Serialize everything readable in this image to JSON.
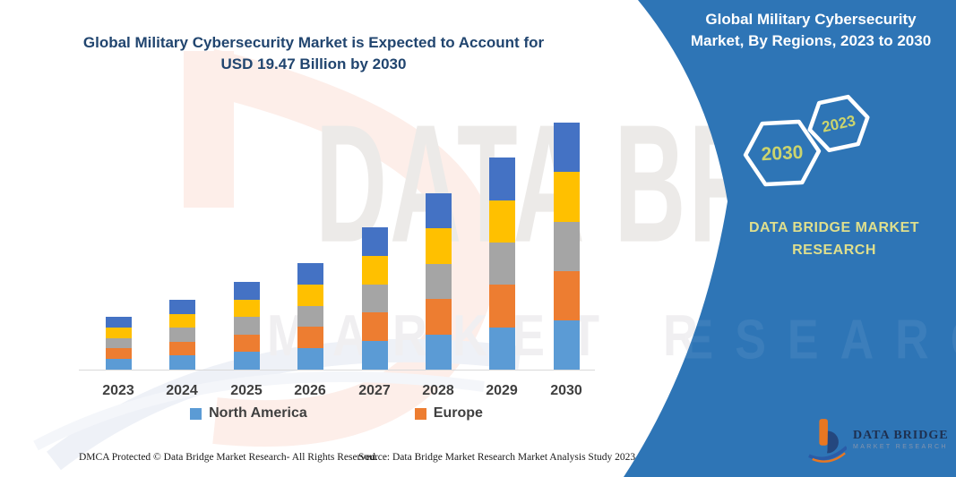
{
  "header": {
    "chart_title_line1": "Global Military Cybersecurity Market is Expected to Account for",
    "chart_title_line2": "USD 19.47 Billion by 2030"
  },
  "panel": {
    "background_color": "#2E75B6",
    "title_line1": "Global Military Cybersecurity",
    "title_line2": "Market, By Regions, 2023 to 2030",
    "hexagons": [
      {
        "label": "2030"
      },
      {
        "label": "2023"
      }
    ],
    "brand_text_line1": "DATA BRIDGE MARKET",
    "brand_text_line2": "RESEARCH",
    "logo": {
      "name_line": "DATA BRIDGE",
      "sub_line": "MARKET RESEARCH"
    }
  },
  "chart_data": {
    "type": "bar",
    "stacked": true,
    "title": "Global Military Cybersecurity Market is Expected to Account for USD 19.47 Billion by 2030",
    "unit": "USD Billion",
    "categories": [
      "2023",
      "2024",
      "2025",
      "2026",
      "2027",
      "2028",
      "2029",
      "2030"
    ],
    "series": [
      {
        "name": "North America",
        "color": "#5B9BD5",
        "in_legend": true,
        "values": [
          0.83,
          1.1,
          1.38,
          1.68,
          2.24,
          2.78,
          3.34,
          3.89
        ]
      },
      {
        "name": "Europe",
        "color": "#ED7D31",
        "in_legend": true,
        "values": [
          0.83,
          1.1,
          1.38,
          1.68,
          2.24,
          2.78,
          3.34,
          3.89
        ]
      },
      {
        "name": "Unlabeled (gray)",
        "color": "#A5A5A5",
        "in_legend": false,
        "values": [
          0.83,
          1.1,
          1.38,
          1.68,
          2.24,
          2.78,
          3.34,
          3.89
        ]
      },
      {
        "name": "Unlabeled (gold)",
        "color": "#FFC000",
        "in_legend": false,
        "values": [
          0.83,
          1.1,
          1.38,
          1.68,
          2.24,
          2.78,
          3.34,
          3.89
        ]
      },
      {
        "name": "Unlabeled (dark blue)",
        "color": "#4472C4",
        "in_legend": false,
        "values": [
          0.83,
          1.1,
          1.38,
          1.68,
          2.24,
          2.78,
          3.34,
          3.89
        ]
      }
    ],
    "totals_usd_billion": [
      4.16,
      5.5,
      6.91,
      8.39,
      11.21,
      13.9,
      16.72,
      19.47
    ],
    "ylim": [
      0,
      20
    ],
    "gridlines": false,
    "legend_position": "bottom"
  },
  "legend": {
    "items": [
      {
        "label": "North America",
        "color": "#5B9BD5"
      },
      {
        "label": "Europe",
        "color": "#ED7D31"
      }
    ]
  },
  "watermark": {
    "line1": "DATA BRI",
    "line2": "MARKET RESEARCH",
    "panel_line": "RESEARCH"
  },
  "footer": {
    "left": "DMCA Protected © Data Bridge Market Research-  All Rights Reserved.",
    "right": "Source: Data Bridge Market Research  Market Analysis Study 2023"
  }
}
